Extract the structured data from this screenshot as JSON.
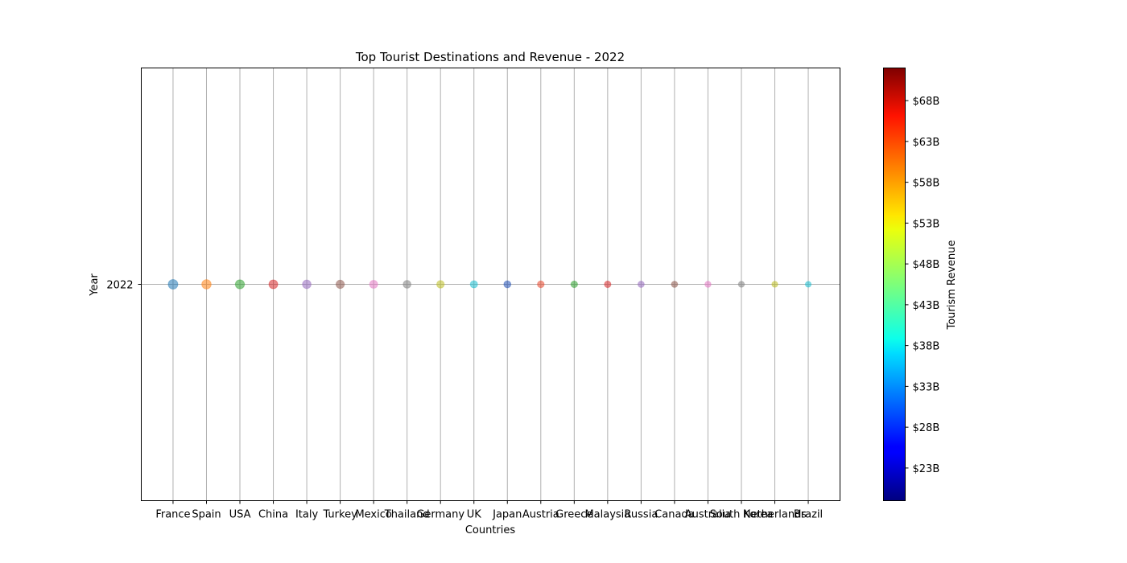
{
  "chart_data": {
    "type": "scatter",
    "title": "Top Tourist Destinations and Revenue - 2022",
    "xlabel": "Countries",
    "ylabel": "Year",
    "y_categories": [
      "2022"
    ],
    "grid": true,
    "points": [
      {
        "country": "France",
        "year": "2022",
        "color": "#1f77b4",
        "size_rank": 1.0
      },
      {
        "country": "Spain",
        "year": "2022",
        "color": "#ff7f0e",
        "size_rank": 0.95
      },
      {
        "country": "USA",
        "year": "2022",
        "color": "#2ca02c",
        "size_rank": 0.9
      },
      {
        "country": "China",
        "year": "2022",
        "color": "#d62728",
        "size_rank": 0.85
      },
      {
        "country": "Italy",
        "year": "2022",
        "color": "#9467bd",
        "size_rank": 0.8
      },
      {
        "country": "Turkey",
        "year": "2022",
        "color": "#8c564b",
        "size_rank": 0.75
      },
      {
        "country": "Mexico",
        "year": "2022",
        "color": "#e377c2",
        "size_rank": 0.7
      },
      {
        "country": "Thailand",
        "year": "2022",
        "color": "#7f7f7f",
        "size_rank": 0.65
      },
      {
        "country": "Germany",
        "year": "2022",
        "color": "#bcbd22",
        "size_rank": 0.6
      },
      {
        "country": "UK",
        "year": "2022",
        "color": "#17becf",
        "size_rank": 0.55
      },
      {
        "country": "Japan",
        "year": "2022",
        "color": "#1f4fb4",
        "size_rank": 0.5
      },
      {
        "country": "Austria",
        "year": "2022",
        "color": "#e8452a",
        "size_rank": 0.45
      },
      {
        "country": "Greece",
        "year": "2022",
        "color": "#2ca02c",
        "size_rank": 0.42
      },
      {
        "country": "Malaysia",
        "year": "2022",
        "color": "#d62728",
        "size_rank": 0.4
      },
      {
        "country": "Russia",
        "year": "2022",
        "color": "#9467bd",
        "size_rank": 0.36
      },
      {
        "country": "Canada",
        "year": "2022",
        "color": "#8c564b",
        "size_rank": 0.34
      },
      {
        "country": "Australia",
        "year": "2022",
        "color": "#e377c2",
        "size_rank": 0.32
      },
      {
        "country": "South Korea",
        "year": "2022",
        "color": "#7f7f7f",
        "size_rank": 0.3
      },
      {
        "country": "Netherlands",
        "year": "2022",
        "color": "#bcbd22",
        "size_rank": 0.28
      },
      {
        "country": "Brazil",
        "year": "2022",
        "color": "#17becf",
        "size_rank": 0.26
      }
    ],
    "colorbar": {
      "label": "Tourism Revenue",
      "colormap": "jet",
      "range": [
        19,
        72
      ],
      "ticks": [
        {
          "value": 23,
          "label": "$23B"
        },
        {
          "value": 28,
          "label": "$28B"
        },
        {
          "value": 33,
          "label": "$33B"
        },
        {
          "value": 38,
          "label": "$38B"
        },
        {
          "value": 43,
          "label": "$43B"
        },
        {
          "value": 48,
          "label": "$48B"
        },
        {
          "value": 53,
          "label": "$53B"
        },
        {
          "value": 58,
          "label": "$58B"
        },
        {
          "value": 63,
          "label": "$63B"
        },
        {
          "value": 68,
          "label": "$68B"
        }
      ]
    }
  }
}
